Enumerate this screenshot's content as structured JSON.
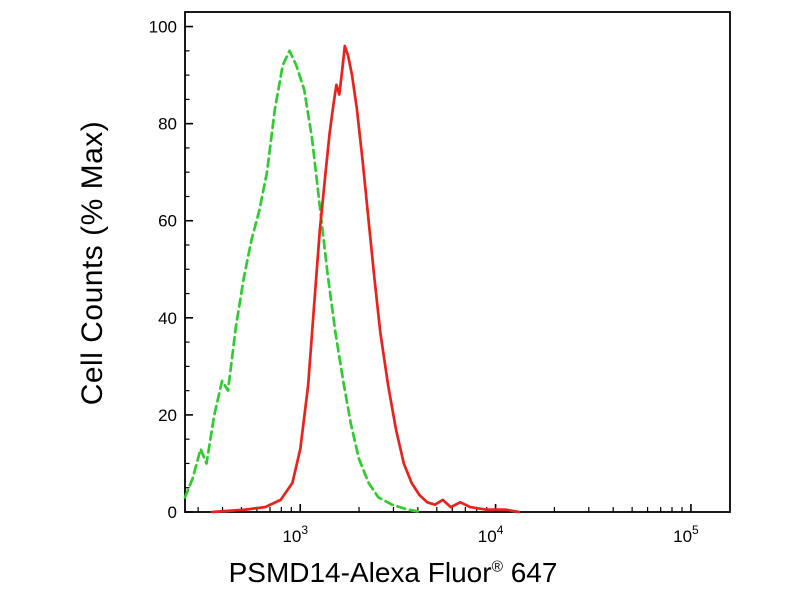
{
  "figure": {
    "background": "#ffffff",
    "axis_color": "#000000"
  },
  "chart_data": {
    "type": "line",
    "subtype": "flow-cytometry-histogram-overlay",
    "xlabel_main": "PSMD14-Alexa Fluor",
    "xlabel_reg": "®",
    "xlabel_suffix": " 647",
    "ylabel": "Cell Counts (% Max)",
    "x_scale": "log10",
    "xlim_log": [
      2.41,
      5.2
    ],
    "ylim": [
      0,
      103
    ],
    "grid": false,
    "legend": "none",
    "x_major_ticks": [
      {
        "label_base": "10",
        "label_exp": "3",
        "log_value": 3
      },
      {
        "label_base": "10",
        "label_exp": "4",
        "log_value": 4
      },
      {
        "label_base": "10",
        "label_exp": "5",
        "log_value": 5
      }
    ],
    "x_minor_tick_multipliers": [
      2,
      3,
      4,
      5,
      6,
      7,
      8,
      9
    ],
    "y_major_ticks": [
      0,
      20,
      40,
      60,
      80,
      100
    ],
    "y_minor_step": 5,
    "series": [
      {
        "name": "green-dashed-control-peak",
        "style": "dashed",
        "color": "#2ecc2e",
        "peak_log10x": 2.945,
        "peak_y": 95,
        "points_log10x_y": [
          [
            2.41,
            3
          ],
          [
            2.45,
            7
          ],
          [
            2.49,
            13
          ],
          [
            2.52,
            10
          ],
          [
            2.56,
            20
          ],
          [
            2.6,
            27
          ],
          [
            2.63,
            25
          ],
          [
            2.67,
            38
          ],
          [
            2.71,
            48
          ],
          [
            2.75,
            56
          ],
          [
            2.79,
            62
          ],
          [
            2.83,
            70
          ],
          [
            2.87,
            83
          ],
          [
            2.91,
            92
          ],
          [
            2.945,
            95
          ],
          [
            2.98,
            92
          ],
          [
            3.02,
            87
          ],
          [
            3.06,
            77
          ],
          [
            3.1,
            63
          ],
          [
            3.14,
            49
          ],
          [
            3.18,
            37
          ],
          [
            3.22,
            27
          ],
          [
            3.26,
            18
          ],
          [
            3.3,
            11
          ],
          [
            3.35,
            6
          ],
          [
            3.4,
            3
          ],
          [
            3.47,
            1.5
          ],
          [
            3.55,
            0.5
          ],
          [
            3.62,
            0
          ]
        ]
      },
      {
        "name": "red-solid-sample-peak",
        "style": "solid",
        "color": "#e8231b",
        "peak_log10x": 3.228,
        "peak_y": 96,
        "points_log10x_y": [
          [
            2.55,
            0
          ],
          [
            2.72,
            0.5
          ],
          [
            2.82,
            1
          ],
          [
            2.9,
            2.5
          ],
          [
            2.96,
            6
          ],
          [
            3.0,
            13
          ],
          [
            3.04,
            26
          ],
          [
            3.07,
            42
          ],
          [
            3.1,
            58
          ],
          [
            3.13,
            70
          ],
          [
            3.15,
            78
          ],
          [
            3.17,
            84
          ],
          [
            3.185,
            88
          ],
          [
            3.2,
            86
          ],
          [
            3.215,
            91
          ],
          [
            3.228,
            96
          ],
          [
            3.245,
            94
          ],
          [
            3.265,
            90
          ],
          [
            3.29,
            83
          ],
          [
            3.32,
            72
          ],
          [
            3.35,
            60
          ],
          [
            3.38,
            48
          ],
          [
            3.41,
            37
          ],
          [
            3.45,
            26
          ],
          [
            3.49,
            17
          ],
          [
            3.53,
            10
          ],
          [
            3.57,
            6
          ],
          [
            3.61,
            3.5
          ],
          [
            3.65,
            2
          ],
          [
            3.69,
            1.5
          ],
          [
            3.73,
            2.5
          ],
          [
            3.77,
            1
          ],
          [
            3.82,
            2
          ],
          [
            3.87,
            1
          ],
          [
            3.95,
            0.5
          ],
          [
            4.05,
            0.5
          ],
          [
            4.12,
            0
          ]
        ]
      }
    ]
  }
}
